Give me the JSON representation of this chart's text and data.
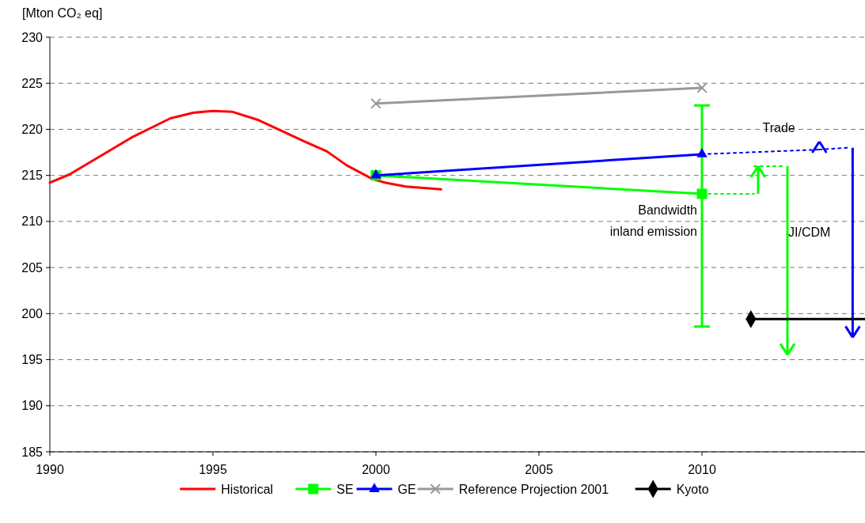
{
  "chart_data": {
    "type": "line",
    "ylabel": "[Mton CO₂ eq]",
    "xlim": [
      1990,
      2015
    ],
    "ylim": [
      185,
      230
    ],
    "xticks": [
      1990,
      1995,
      2000,
      2005,
      2010
    ],
    "yticks": [
      185,
      190,
      195,
      200,
      205,
      210,
      215,
      220,
      225,
      230
    ],
    "grid": "y",
    "legend": "bottom",
    "series": [
      {
        "name": "Historical",
        "color": "#ff0000",
        "marker": "none",
        "x": [
          1990,
          1990.6,
          1992.5,
          1993.7,
          1994.4,
          1995,
          1995.6,
          1996.4,
          1997.8,
          1998.5,
          1999.1,
          1999.9,
          2000.3,
          2000.9,
          2002
        ],
        "values": [
          214.2,
          215.1,
          219.1,
          221.2,
          221.8,
          222,
          221.9,
          221,
          218.7,
          217.6,
          216.1,
          214.6,
          214.2,
          213.8,
          213.5
        ]
      },
      {
        "name": "SE",
        "color": "#00ff00",
        "marker": "square",
        "x": [
          2000,
          2010
        ],
        "values": [
          215,
          213
        ],
        "errors": [
          null,
          [
            198.6,
            222.6
          ]
        ]
      },
      {
        "name": "GE",
        "color": "#0000ff",
        "marker": "triangle",
        "x": [
          2000,
          2010
        ],
        "values": [
          215,
          217.3
        ]
      },
      {
        "name": "Reference Projection 2001",
        "color": "#999999",
        "marker": "cross",
        "x": [
          2000,
          2010
        ],
        "values": [
          222.8,
          224.5
        ]
      },
      {
        "name": "Kyoto",
        "color": "#000000",
        "marker": "diamond",
        "x": [
          2011.5,
          2015
        ],
        "values": [
          199.4,
          199.4
        ]
      },
      {
        "color": "#00ff00",
        "marker": "none",
        "line_style": "dotted",
        "x": [
          2010,
          2011.6
        ],
        "values": [
          213,
          213
        ]
      },
      {
        "color": "#00ff00",
        "marker": "none",
        "line_style": "dotted",
        "x": [
          2011.6,
          2012.5
        ],
        "values": [
          216,
          216
        ]
      },
      {
        "color": "#0000ff",
        "marker": "none",
        "line_style": "dotted",
        "x": [
          2010,
          2013.6
        ],
        "values": [
          217.3,
          217.8
        ]
      },
      {
        "color": "#0000ff",
        "marker": "none",
        "line_style": "dotted",
        "x": [
          2013.6,
          2014.5
        ],
        "values": [
          217.8,
          218
        ]
      }
    ],
    "annotations": [
      "Trade",
      "JI/CDM",
      "Bandwidth\ninland emission"
    ]
  }
}
